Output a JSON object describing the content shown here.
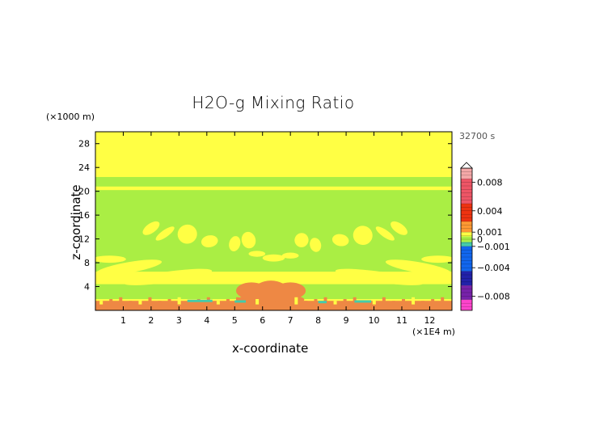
{
  "chart_data": {
    "type": "heatmap",
    "title": "H2O-g Mixing Ratio",
    "time_label": "32700 s",
    "xlabel": "x-coordinate",
    "ylabel": "z-coordinate",
    "x_unit": "(×1E4 m)",
    "y_unit": "(×1000 m)",
    "xlim": [
      0,
      12.8
    ],
    "ylim": [
      0,
      30
    ],
    "x_ticks": [
      1,
      2,
      3,
      4,
      5,
      6,
      7,
      8,
      9,
      10,
      11,
      12
    ],
    "y_ticks": [
      4,
      8,
      12,
      16,
      20,
      24,
      28
    ],
    "colorbar": {
      "tick_labels": [
        "0.008",
        "0.004",
        "0.001",
        "0",
        "−0.001",
        "−0.004",
        "−0.008"
      ],
      "tick_values": [
        0.008,
        0.004,
        0.001,
        0,
        -0.001,
        -0.004,
        -0.008
      ],
      "range": [
        -0.01,
        0.01
      ],
      "colors": {
        "max": "#f4a8a8",
        "pos_high": "#ee5566",
        "pos_mid": "#ee3311",
        "pos_low": "#ff9933",
        "near_zero_pos": "#ffff44",
        "near_zero": "#aaee44",
        "near_zero_neg": "#44ccaa",
        "neg_low": "#1166ee",
        "neg_mid": "#2222aa",
        "neg_high": "#7722aa",
        "min": "#ff44cc"
      }
    },
    "field_colors": {
      "background": "#ffff44",
      "band": "#aaee44",
      "anomaly": "#ee8844",
      "negative": "#44ccaa"
    }
  }
}
